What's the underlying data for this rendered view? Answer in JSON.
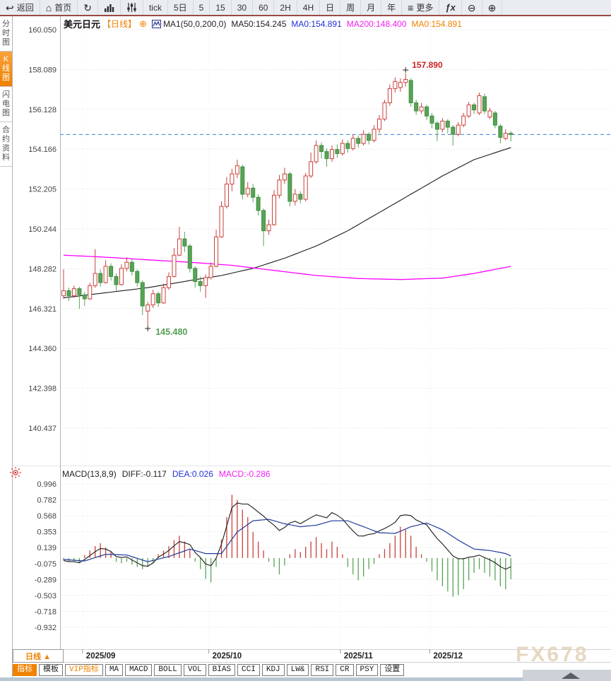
{
  "toolbar": {
    "items": [
      {
        "id": "back",
        "label": "返回",
        "icon": "back"
      },
      {
        "id": "home",
        "label": "首页",
        "icon": "home"
      },
      {
        "id": "refresh",
        "label": "",
        "icon": "refresh"
      },
      {
        "id": "chart-style",
        "label": "",
        "icon": "bar-chart"
      },
      {
        "id": "candle-settings",
        "label": "",
        "icon": "sliders"
      },
      {
        "id": "tick",
        "label": "tick"
      },
      {
        "id": "5d",
        "label": "5日"
      },
      {
        "id": "m5",
        "label": "5"
      },
      {
        "id": "m15",
        "label": "15"
      },
      {
        "id": "m30",
        "label": "30"
      },
      {
        "id": "m60",
        "label": "60"
      },
      {
        "id": "h2",
        "label": "2H"
      },
      {
        "id": "h4",
        "label": "4H"
      },
      {
        "id": "day",
        "label": "日"
      },
      {
        "id": "week",
        "label": "周"
      },
      {
        "id": "month",
        "label": "月"
      },
      {
        "id": "year",
        "label": "年"
      },
      {
        "id": "more",
        "label": "更多",
        "icon": "menu"
      },
      {
        "id": "fx",
        "label": "ƒx"
      },
      {
        "id": "zoom-out",
        "label": "",
        "icon": "zoom-out"
      },
      {
        "id": "zoom-in",
        "label": "",
        "icon": "zoom-in"
      }
    ]
  },
  "icons": {
    "back": "↩",
    "home": "⌂",
    "refresh": "↻",
    "menu": "≡",
    "zoom_out": "⊖",
    "zoom_in": "⊕",
    "add": "⊕"
  },
  "sidebar": {
    "tabs": [
      {
        "id": "time-chart",
        "label": "分时图",
        "active": false
      },
      {
        "id": "kline-chart",
        "label": "K线图",
        "active": true
      },
      {
        "id": "lightning-chart",
        "label": "闪电图",
        "active": false
      },
      {
        "id": "contract-info",
        "label": "合约资料",
        "active": false
      }
    ]
  },
  "header": {
    "symbol": "美元日元",
    "period": "【日线】",
    "ma_params": "MA1(50,0,200,0)",
    "ma50": "MA50:154.245",
    "ma0_blue": "MA0:154.891",
    "ma200": "MA200:148.400",
    "ma0_orange": "MA0:154.891"
  },
  "macd_header": {
    "params": "MACD(13,8,9)",
    "diff": "DIFF:-0.117",
    "dea": "DEA:0.026",
    "macd": "MACD:-0.286"
  },
  "bottom": {
    "period_label": "日线 ▲",
    "indicators": [
      {
        "label": "指标",
        "active": true
      },
      {
        "label": "模板"
      },
      {
        "label": "VIP指标",
        "vip": true
      },
      {
        "label": "MA"
      },
      {
        "label": "MACD"
      },
      {
        "label": "BOLL"
      },
      {
        "label": "VOL"
      },
      {
        "label": "BIAS"
      },
      {
        "label": "CCI"
      },
      {
        "label": "KDJ"
      },
      {
        "label": "LW&"
      },
      {
        "label": "RSI"
      },
      {
        "label": "CR"
      },
      {
        "label": "PSY"
      },
      {
        "label": "设置"
      }
    ]
  },
  "watermark": "FX678",
  "colors": {
    "accent_orange": "#f08200",
    "candle_up": "#c9413b",
    "candle_down": "#57a457",
    "candle_down_edge": "#3f8f3f",
    "ma_black": "#1a1a1a",
    "ma_magenta": "#ff00ff",
    "dea_blue": "#223a99",
    "diff_black": "#1a1a1a",
    "dashed_price": "#3a7fd5",
    "text_blue": "#2430d8",
    "text_magenta": "#f31df3",
    "high_label": "#cc2222",
    "low_label": "#55a055",
    "grid": "#dedede",
    "axis_text": "#444444"
  },
  "chart_data": {
    "type": "candlestick+macd",
    "title": "美元日元 日线",
    "price_axis_labels": [
      "160.050",
      "158.089",
      "156.128",
      "154.166",
      "152.205",
      "150.244",
      "148.282",
      "146.321",
      "144.360",
      "142.398",
      "140.437"
    ],
    "macd_axis_labels": [
      "0.996",
      "0.782",
      "0.568",
      "0.353",
      "0.139",
      "-0.075",
      "-0.289",
      "-0.503",
      "-0.718",
      "-0.932"
    ],
    "months": [
      {
        "label": "2025/09",
        "index": 4
      },
      {
        "label": "2025/10",
        "index": 28
      },
      {
        "label": "2025/11",
        "index": 53
      },
      {
        "label": "2025/12",
        "index": 70
      }
    ],
    "current_price": 154.891,
    "high_annotation": {
      "value": "157.890",
      "index": 65,
      "price": 157.89
    },
    "low_annotation": {
      "value": "145.480",
      "index": 16,
      "price": 145.48
    },
    "candles": [
      [
        146.95,
        148.25,
        146.8,
        147.2
      ],
      [
        147.2,
        147.35,
        146.7,
        146.95
      ],
      [
        146.95,
        147.45,
        146.85,
        147.3
      ],
      [
        147.3,
        147.4,
        146.3,
        147.0
      ],
      [
        147.0,
        147.15,
        146.45,
        146.8
      ],
      [
        146.8,
        147.6,
        146.75,
        147.45
      ],
      [
        147.45,
        149.25,
        147.35,
        148.05
      ],
      [
        148.05,
        148.25,
        147.4,
        147.6
      ],
      [
        147.6,
        148.7,
        147.55,
        148.4
      ],
      [
        148.4,
        148.55,
        147.7,
        147.9
      ],
      [
        147.9,
        148.05,
        147.2,
        147.5
      ],
      [
        147.5,
        148.5,
        147.45,
        148.3
      ],
      [
        148.3,
        148.85,
        148.15,
        148.6
      ],
      [
        148.6,
        148.75,
        147.95,
        148.15
      ],
      [
        148.15,
        148.25,
        147.4,
        147.6
      ],
      [
        147.6,
        147.7,
        146.0,
        146.45
      ],
      [
        146.2,
        146.65,
        145.48,
        146.5
      ],
      [
        146.5,
        147.25,
        146.35,
        147.05
      ],
      [
        147.05,
        147.15,
        146.4,
        146.6
      ],
      [
        146.6,
        147.55,
        146.55,
        147.35
      ],
      [
        147.35,
        148.1,
        147.25,
        147.9
      ],
      [
        147.9,
        149.3,
        147.85,
        148.95
      ],
      [
        148.95,
        150.35,
        148.9,
        149.75
      ],
      [
        149.75,
        150.1,
        149.1,
        149.4
      ],
      [
        149.4,
        149.5,
        148.1,
        148.3
      ],
      [
        148.3,
        148.4,
        147.35,
        147.65
      ],
      [
        147.65,
        147.9,
        147.15,
        147.45
      ],
      [
        147.45,
        148.0,
        146.85,
        147.85
      ],
      [
        147.85,
        148.6,
        147.75,
        148.4
      ],
      [
        148.4,
        150.2,
        148.35,
        149.85
      ],
      [
        149.85,
        151.6,
        149.8,
        151.35
      ],
      [
        151.35,
        152.8,
        151.25,
        152.45
      ],
      [
        152.45,
        153.2,
        152.1,
        152.95
      ],
      [
        152.95,
        153.65,
        152.75,
        153.35
      ],
      [
        153.3,
        153.4,
        151.7,
        151.95
      ],
      [
        151.95,
        152.55,
        151.8,
        152.25
      ],
      [
        152.25,
        152.45,
        151.55,
        151.8
      ],
      [
        151.8,
        151.95,
        150.9,
        151.15
      ],
      [
        151.15,
        151.25,
        149.4,
        150.15
      ],
      [
        150.15,
        150.7,
        149.95,
        150.45
      ],
      [
        150.45,
        152.15,
        150.4,
        151.9
      ],
      [
        151.9,
        152.9,
        151.75,
        152.65
      ],
      [
        152.65,
        153.25,
        152.45,
        152.95
      ],
      [
        152.95,
        153.05,
        151.35,
        151.6
      ],
      [
        151.6,
        152.2,
        151.4,
        151.95
      ],
      [
        151.95,
        152.1,
        151.5,
        151.7
      ],
      [
        151.7,
        153.0,
        151.6,
        152.85
      ],
      [
        152.85,
        154.0,
        152.75,
        153.55
      ],
      [
        153.55,
        154.6,
        153.45,
        154.35
      ],
      [
        154.35,
        154.5,
        153.7,
        154.05
      ],
      [
        154.05,
        154.2,
        153.3,
        153.7
      ],
      [
        153.7,
        154.35,
        153.55,
        154.15
      ],
      [
        154.15,
        154.4,
        153.75,
        153.95
      ],
      [
        153.95,
        154.65,
        153.85,
        154.45
      ],
      [
        154.45,
        154.6,
        154.0,
        154.2
      ],
      [
        154.2,
        154.9,
        154.1,
        154.7
      ],
      [
        154.7,
        154.85,
        154.25,
        154.45
      ],
      [
        154.45,
        155.1,
        154.35,
        154.9
      ],
      [
        154.9,
        155.0,
        154.4,
        154.6
      ],
      [
        154.6,
        155.35,
        154.5,
        155.15
      ],
      [
        155.15,
        155.85,
        154.95,
        155.65
      ],
      [
        155.65,
        156.6,
        155.55,
        156.45
      ],
      [
        156.45,
        157.35,
        156.3,
        157.15
      ],
      [
        157.15,
        157.7,
        156.95,
        157.5
      ],
      [
        157.2,
        157.65,
        157.0,
        157.45
      ],
      [
        157.45,
        157.89,
        157.25,
        157.6
      ],
      [
        157.55,
        157.65,
        156.25,
        156.45
      ],
      [
        156.45,
        156.6,
        155.85,
        156.05
      ],
      [
        156.05,
        156.45,
        155.9,
        156.25
      ],
      [
        156.25,
        156.35,
        155.6,
        155.8
      ],
      [
        155.8,
        155.95,
        155.2,
        155.45
      ],
      [
        155.45,
        155.55,
        154.55,
        155.15
      ],
      [
        155.15,
        155.7,
        155.0,
        155.55
      ],
      [
        155.55,
        155.65,
        154.95,
        155.25
      ],
      [
        155.25,
        155.35,
        154.35,
        154.9
      ],
      [
        154.9,
        155.5,
        154.8,
        155.35
      ],
      [
        155.35,
        155.95,
        155.25,
        155.8
      ],
      [
        155.8,
        156.5,
        155.7,
        156.35
      ],
      [
        156.35,
        156.45,
        155.9,
        156.1
      ],
      [
        155.95,
        156.95,
        155.85,
        156.8
      ],
      [
        156.75,
        156.9,
        155.9,
        156.05
      ],
      [
        155.75,
        156.2,
        155.65,
        156.05
      ],
      [
        155.95,
        156.05,
        155.2,
        155.35
      ],
      [
        155.3,
        155.4,
        154.45,
        154.75
      ],
      [
        154.7,
        155.15,
        154.6,
        154.95
      ],
      [
        154.95,
        155.05,
        154.55,
        154.89
      ]
    ],
    "ma_black": {
      "name": "MA50",
      "points": [
        [
          0,
          146.85
        ],
        [
          8,
          147.1
        ],
        [
          16,
          147.35
        ],
        [
          24,
          147.7
        ],
        [
          30,
          147.95
        ],
        [
          36,
          148.3
        ],
        [
          42,
          148.8
        ],
        [
          48,
          149.4
        ],
        [
          54,
          150.15
        ],
        [
          60,
          151.05
        ],
        [
          66,
          151.95
        ],
        [
          72,
          152.85
        ],
        [
          78,
          153.65
        ],
        [
          85,
          154.25
        ]
      ]
    },
    "ma_magenta": {
      "name": "MA200",
      "points": [
        [
          0,
          148.95
        ],
        [
          8,
          148.85
        ],
        [
          16,
          148.72
        ],
        [
          24,
          148.6
        ],
        [
          32,
          148.45
        ],
        [
          40,
          148.2
        ],
        [
          48,
          147.95
        ],
        [
          56,
          147.8
        ],
        [
          64,
          147.75
        ],
        [
          72,
          147.82
        ],
        [
          78,
          148.05
        ],
        [
          85,
          148.4
        ]
      ]
    },
    "macd": {
      "hist": [
        -0.03,
        -0.05,
        -0.04,
        -0.06,
        0.04,
        0.1,
        0.16,
        0.2,
        0.14,
        0.08,
        -0.05,
        -0.07,
        -0.05,
        -0.09,
        -0.12,
        -0.15,
        -0.12,
        -0.07,
        0.05,
        0.1,
        0.16,
        0.24,
        0.3,
        0.22,
        0.12,
        -0.05,
        -0.15,
        -0.28,
        -0.33,
        -0.12,
        0.25,
        0.55,
        0.85,
        0.78,
        0.65,
        0.55,
        0.35,
        0.22,
        0.1,
        -0.05,
        -0.12,
        -0.22,
        -0.1,
        0.05,
        0.12,
        0.08,
        0.15,
        0.22,
        0.28,
        0.2,
        0.12,
        0.22,
        0.15,
        0.05,
        -0.12,
        -0.22,
        -0.3,
        -0.25,
        -0.15,
        -0.08,
        0.05,
        0.12,
        0.2,
        0.3,
        0.42,
        0.38,
        0.3,
        0.15,
        0.05,
        -0.05,
        -0.18,
        -0.3,
        -0.38,
        -0.45,
        -0.52,
        -0.5,
        -0.42,
        -0.3,
        -0.2,
        -0.15,
        -0.2,
        -0.25,
        -0.3,
        -0.38,
        -0.42,
        -0.286
      ],
      "dea_points": [
        [
          0,
          -0.02
        ],
        [
          4,
          -0.04
        ],
        [
          8,
          0.05
        ],
        [
          12,
          0.04
        ],
        [
          16,
          -0.05
        ],
        [
          20,
          0.02
        ],
        [
          24,
          0.12
        ],
        [
          27,
          0.06
        ],
        [
          30,
          0.06
        ],
        [
          33,
          0.35
        ],
        [
          36,
          0.5
        ],
        [
          39,
          0.52
        ],
        [
          42,
          0.46
        ],
        [
          45,
          0.42
        ],
        [
          48,
          0.44
        ],
        [
          51,
          0.5
        ],
        [
          54,
          0.5
        ],
        [
          57,
          0.42
        ],
        [
          60,
          0.34
        ],
        [
          63,
          0.33
        ],
        [
          66,
          0.42
        ],
        [
          69,
          0.47
        ],
        [
          72,
          0.38
        ],
        [
          75,
          0.24
        ],
        [
          78,
          0.12
        ],
        [
          81,
          0.1
        ],
        [
          84,
          0.06
        ],
        [
          85,
          0.026
        ]
      ]
    }
  }
}
